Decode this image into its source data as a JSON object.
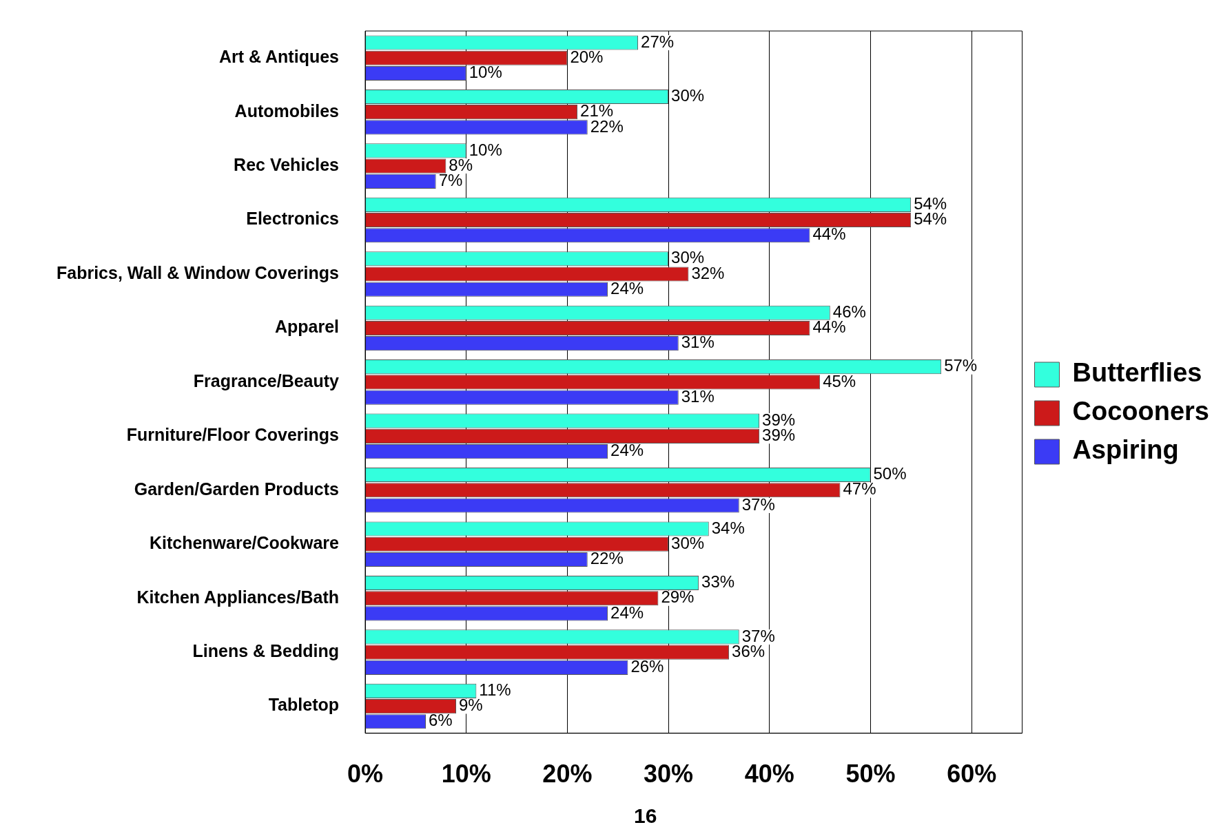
{
  "chart_data": {
    "type": "bar",
    "orientation": "horizontal",
    "categories": [
      "Art & Antiques",
      "Automobiles",
      "Rec Vehicles",
      "Electronics",
      "Fabrics, Wall & Window Coverings",
      "Apparel",
      "Fragrance/Beauty",
      "Furniture/Floor Coverings",
      "Garden/Garden Products",
      "Kitchenware/Cookware",
      "Kitchen Appliances/Bath",
      "Linens & Bedding",
      "Tabletop"
    ],
    "series": [
      {
        "name": "Butterflies",
        "color": "#33ffdd",
        "values": [
          27,
          30,
          10,
          54,
          30,
          46,
          57,
          39,
          50,
          34,
          33,
          37,
          11
        ],
        "value_labels": [
          "27%",
          "30%",
          "10%",
          "54%",
          "30%",
          "46%",
          "57%",
          "39%",
          "50%",
          "34%",
          "33%",
          "37%",
          "11%"
        ]
      },
      {
        "name": "Cocooners",
        "color": "#cc1a1a",
        "values": [
          20,
          21,
          8,
          54,
          32,
          44,
          45,
          39,
          47,
          30,
          29,
          36,
          9
        ],
        "value_labels": [
          "20%",
          "21%",
          "8%",
          "54%",
          "32%",
          "44%",
          "45%",
          "39%",
          "47%",
          "30%",
          "29%",
          "36%",
          "9%"
        ]
      },
      {
        "name": "Aspiring",
        "color": "#3b3bf5",
        "values": [
          10,
          22,
          7,
          44,
          24,
          31,
          31,
          24,
          37,
          22,
          24,
          26,
          6
        ],
        "value_labels": [
          "10%",
          "22%",
          "7%",
          "44%",
          "24%",
          "31%",
          "31%",
          "24%",
          "37%",
          "22%",
          "24%",
          "26%",
          "6%"
        ]
      }
    ],
    "xlim": [
      0,
      65
    ],
    "xticks": [
      {
        "value": 0,
        "label": "0%"
      },
      {
        "value": 10,
        "label": "10%"
      },
      {
        "value": 20,
        "label": "20%"
      },
      {
        "value": 30,
        "label": "30%"
      },
      {
        "value": 40,
        "label": "40%"
      },
      {
        "value": 50,
        "label": "50%"
      },
      {
        "value": 60,
        "label": "60%"
      }
    ],
    "grid": "x",
    "legend": "right",
    "annotations": [
      "16"
    ]
  }
}
